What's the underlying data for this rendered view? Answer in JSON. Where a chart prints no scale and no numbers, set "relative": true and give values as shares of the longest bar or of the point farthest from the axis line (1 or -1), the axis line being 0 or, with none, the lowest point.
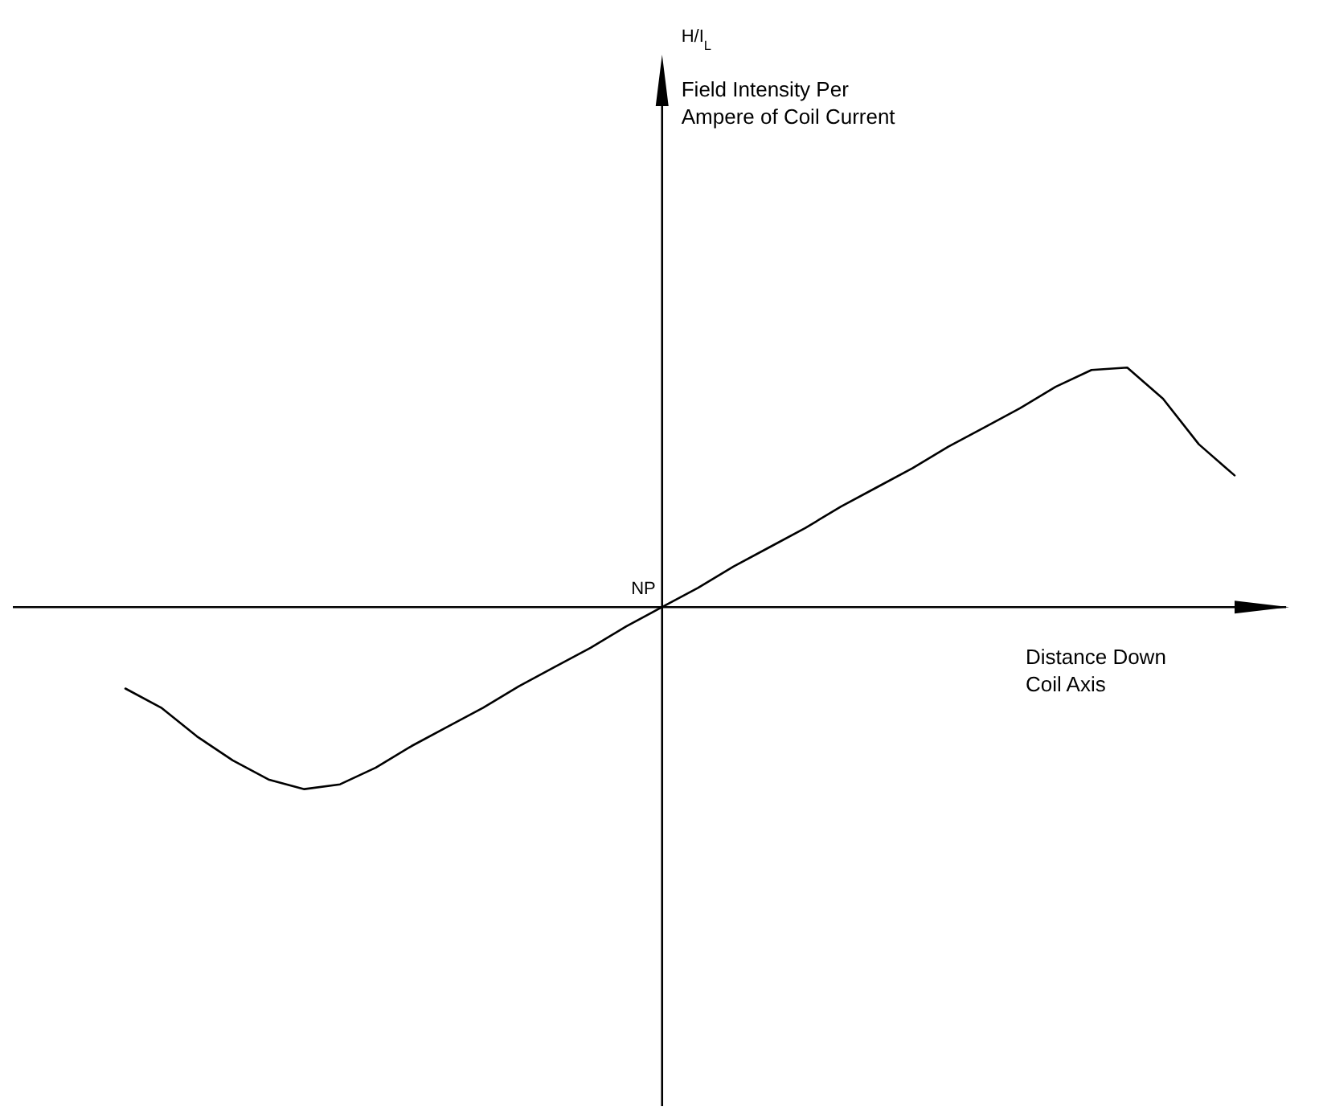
{
  "chart_data": {
    "type": "line",
    "relative": true,
    "xlabel": "Distance Down Coil Axis",
    "annotations": [
      "H/I$_{L}$",
      "Field Intensity Per Ampere of Coil Current",
      "NP"
    ],
    "categories": [
      null,
      null,
      null,
      null,
      null,
      null,
      null,
      null,
      null,
      null,
      null,
      null,
      null,
      null,
      null,
      null,
      null,
      null,
      null,
      null,
      null,
      null,
      null,
      null,
      null,
      null,
      null,
      null,
      null,
      null,
      null,
      null
    ],
    "series": [
      {
        "color": "#000000",
        "values": [
          -0.34,
          -0.42,
          -0.54,
          -0.64,
          -0.72,
          -0.76,
          -0.74,
          -0.67,
          -0.58,
          -0.5,
          -0.42,
          -0.33,
          -0.25,
          -0.17,
          -0.08,
          0,
          0.08,
          0.17,
          0.25,
          0.33,
          0.42,
          0.5,
          0.58,
          0.67,
          0.75,
          0.83,
          0.92,
          0.99,
          1,
          0.87,
          0.68,
          0.55
        ]
      }
    ]
  }
}
